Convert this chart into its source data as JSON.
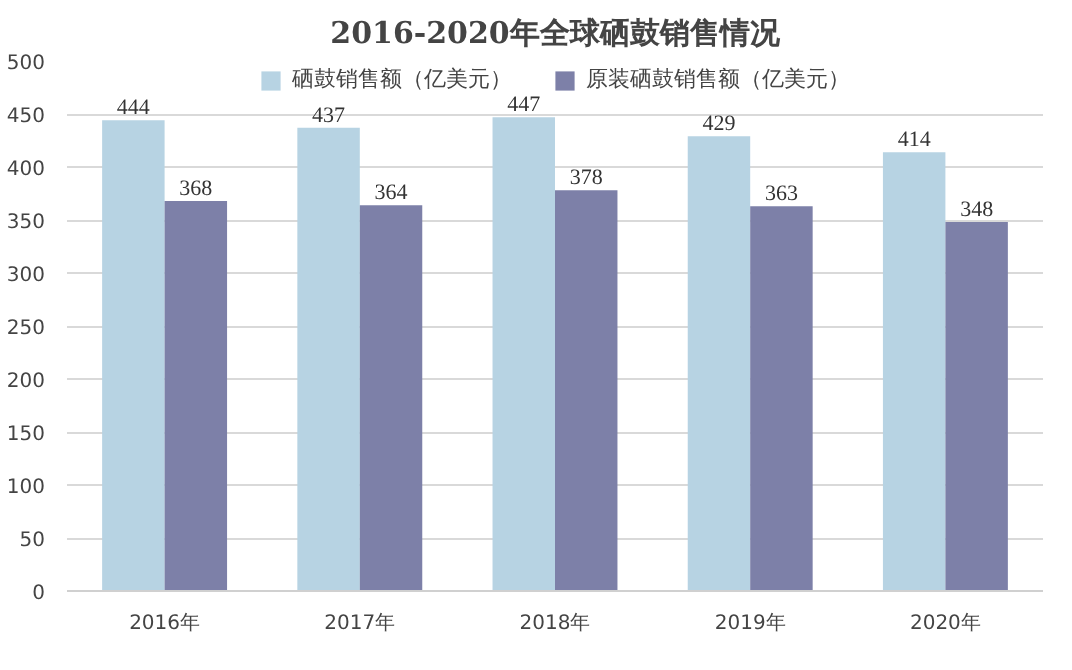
{
  "chart_data": {
    "type": "bar",
    "title": "2016-2020年全球硒鼓销售情况",
    "categories": [
      "2016年",
      "2017年",
      "2018年",
      "2019年",
      "2020年"
    ],
    "series": [
      {
        "name": "硒鼓销售额（亿美元）",
        "color": "#b7d3e3",
        "values": [
          444,
          437,
          447,
          429,
          414
        ]
      },
      {
        "name": "原装硒鼓销售额（亿美元）",
        "color": "#7d80a8",
        "values": [
          368,
          364,
          378,
          363,
          348
        ]
      }
    ],
    "ylim": [
      0,
      500
    ],
    "yticks": [
      0,
      50,
      100,
      150,
      200,
      250,
      300,
      350,
      400,
      450,
      500
    ],
    "grid": "y",
    "legend": "top",
    "data_labels": true
  }
}
